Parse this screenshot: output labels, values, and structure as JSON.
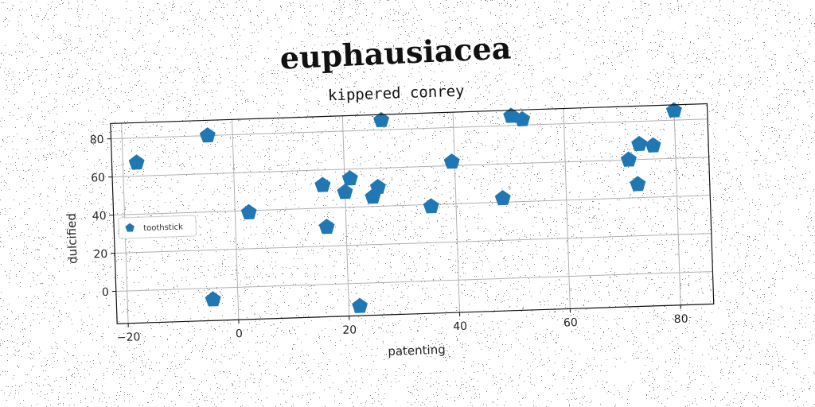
{
  "chart_data": {
    "type": "scatter",
    "suptitle": "euphausiacea",
    "title": "kippered conrey",
    "xlabel": "patenting",
    "ylabel": "dulcified",
    "xlim": [
      -22,
      86
    ],
    "ylim": [
      -17,
      88
    ],
    "xticks": [
      -20,
      0,
      20,
      40,
      60,
      80
    ],
    "yticks": [
      0,
      20,
      40,
      60,
      80
    ],
    "grid": true,
    "legend": "center-left",
    "marker": "pentagon",
    "series": [
      {
        "name": "toothstick",
        "color": "#1f77b4",
        "x": [
          -17.5,
          -4.5,
          -4.5,
          2.5,
          16,
          16.5,
          20,
          21,
          25,
          26,
          27,
          35.5,
          39.5,
          48.5,
          50.5,
          52.5,
          71.5,
          73,
          73.5,
          76,
          80,
          22
        ],
        "y": [
          67,
          80,
          -6,
          39,
          52,
          30,
          48,
          55,
          45,
          50,
          85,
          39,
          62,
          42,
          85,
          83,
          60,
          47,
          68,
          67,
          85,
          -12
        ]
      }
    ]
  }
}
